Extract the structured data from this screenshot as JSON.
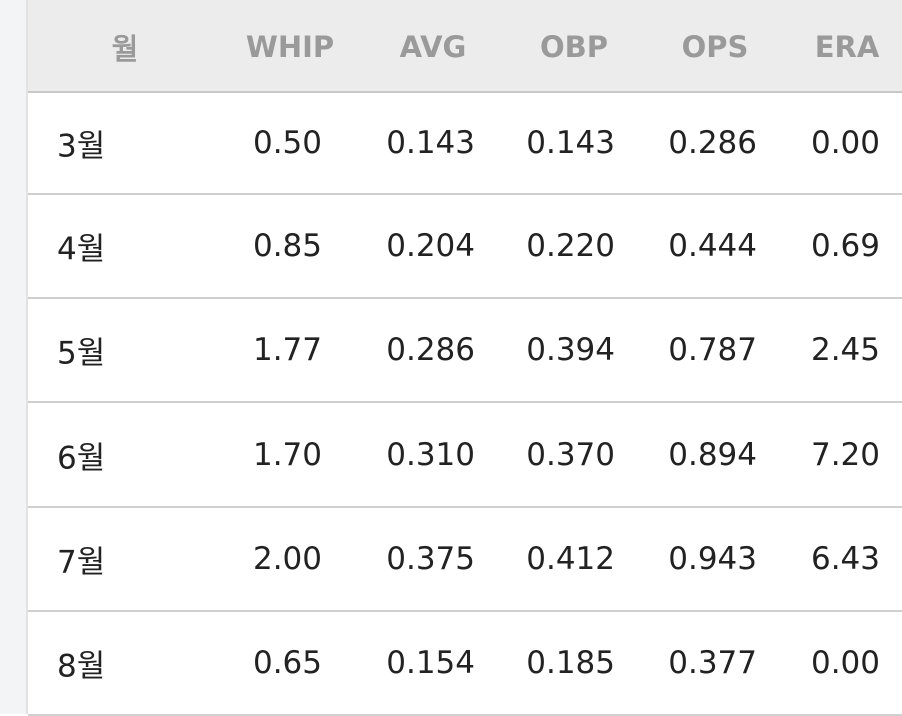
{
  "table": {
    "header": [
      "월",
      "WHIP",
      "AVG",
      "OBP",
      "OPS",
      "ERA"
    ],
    "rows": [
      [
        "3월",
        "0.50",
        "0.143",
        "0.143",
        "0.286",
        "0.00"
      ],
      [
        "4월",
        "0.85",
        "0.204",
        "0.220",
        "0.444",
        "0.69"
      ],
      [
        "5월",
        "1.77",
        "0.286",
        "0.394",
        "0.787",
        "2.45"
      ],
      [
        "6월",
        "1.70",
        "0.310",
        "0.370",
        "0.894",
        "7.20"
      ],
      [
        "7월",
        "2.00",
        "0.375",
        "0.412",
        "0.943",
        "6.43"
      ],
      [
        "8월",
        "0.65",
        "0.154",
        "0.185",
        "0.377",
        "0.00"
      ]
    ]
  }
}
